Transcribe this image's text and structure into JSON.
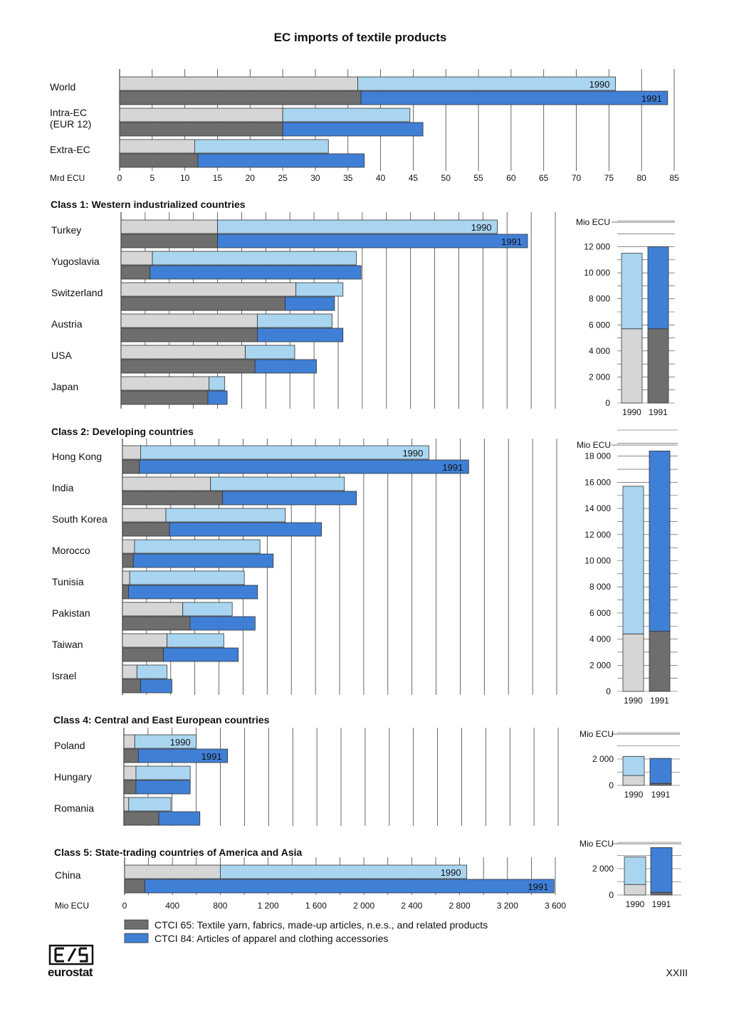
{
  "title": "EC imports of textile products",
  "page_number": "XXIII",
  "logo_text": "eurostat",
  "colors": {
    "ctci65_1990": "#d6d6d6",
    "ctci65_1991": "#6e6e6e",
    "ctci84_1990": "#a9d5f0",
    "ctci84_1991": "#3f7fd6",
    "grid": "#444444"
  },
  "legend": [
    {
      "key": "ctci65",
      "label": "CTCI 65: Textile yarn, fabrics, made-up articles, n.e.s., and related products"
    },
    {
      "key": "ctci84",
      "label": "CTCI 84: Articles of apparel and clothing accessories"
    }
  ],
  "chart_data": [
    {
      "type": "bar",
      "orientation": "horizontal",
      "stacked": true,
      "title": "",
      "unit_label": "Mrd ECU",
      "xlim": [
        0,
        85
      ],
      "ticks": [
        "0",
        "5",
        "10",
        "15",
        "20",
        "25",
        "30",
        "35",
        "40",
        "45",
        "50",
        "55",
        "60",
        "65",
        "70",
        "75",
        "80",
        "85"
      ],
      "year_labels": [
        "1990",
        "1991"
      ],
      "categories": [
        "World",
        "Intra-EC\n(EUR 12)",
        "Extra-EC"
      ],
      "series": [
        {
          "name": "1990",
          "ctci65": [
            36.5,
            25,
            11.5
          ],
          "ctci84": [
            39.5,
            19.5,
            20.5
          ]
        },
        {
          "name": "1991",
          "ctci65": [
            37,
            25,
            12
          ],
          "ctci84": [
            47,
            21.5,
            25.5
          ]
        }
      ]
    },
    {
      "type": "bar",
      "orientation": "horizontal",
      "stacked": true,
      "title": "Class 1: Western industrialized countries",
      "xlim": [
        0,
        3600
      ],
      "year_labels": [
        "1990",
        "1991"
      ],
      "categories": [
        "Turkey",
        "Yugoslavia",
        "Switzerland",
        "Austria",
        "USA",
        "Japan"
      ],
      "series": [
        {
          "name": "1990",
          "ctci65": [
            800,
            260,
            1450,
            1130,
            1030,
            730
          ],
          "ctci84": [
            2320,
            1690,
            390,
            620,
            410,
            130
          ]
        },
        {
          "name": "1991",
          "ctci65": [
            800,
            240,
            1360,
            1130,
            1110,
            720
          ],
          "ctci84": [
            2570,
            1750,
            410,
            710,
            510,
            160
          ]
        }
      ],
      "summary": {
        "unit_label": "Mio ECU",
        "ylim": [
          0,
          14000
        ],
        "ticks": [
          "0",
          "2 000",
          "4 000",
          "6 000",
          "8 000",
          "10 000",
          "12 000"
        ],
        "categories": [
          "1990",
          "1991"
        ],
        "ctci65": [
          5700,
          5700
        ],
        "ctci84": [
          5800,
          6300
        ]
      }
    },
    {
      "type": "bar",
      "orientation": "horizontal",
      "stacked": true,
      "title": "Class 2: Developing countries",
      "xlim": [
        0,
        3600
      ],
      "year_labels": [
        "1990",
        "1991"
      ],
      "categories": [
        "Hong Kong",
        "India",
        "South Korea",
        "Morocco",
        "Tunisia",
        "Pakistan",
        "Taiwan",
        "Israel"
      ],
      "series": [
        {
          "name": "1990",
          "ctci65": [
            150,
            730,
            360,
            100,
            60,
            500,
            370,
            120
          ],
          "ctci84": [
            2390,
            1110,
            990,
            1040,
            950,
            410,
            470,
            250
          ]
        },
        {
          "name": "1991",
          "ctci65": [
            140,
            830,
            390,
            90,
            50,
            560,
            340,
            150
          ],
          "ctci84": [
            2730,
            1110,
            1260,
            1160,
            1070,
            540,
            620,
            260
          ]
        }
      ],
      "summary": {
        "unit_label": "Mio ECU",
        "ylim": [
          0,
          20000
        ],
        "ticks": [
          "0",
          "2 000",
          "4 000",
          "6 000",
          "8 000",
          "10 000",
          "12 000",
          "14 000",
          "16 000",
          "18 000"
        ],
        "categories": [
          "1990",
          "1991"
        ],
        "ctci65": [
          4400,
          4600
        ],
        "ctci84": [
          11300,
          13800
        ]
      }
    },
    {
      "type": "bar",
      "orientation": "horizontal",
      "stacked": true,
      "title": "Class 4: Central and East European countries",
      "xlim": [
        0,
        3600
      ],
      "year_labels": [
        "1990",
        "1991"
      ],
      "categories": [
        "Poland",
        "Hungary",
        "Romania"
      ],
      "series": [
        {
          "name": "1990",
          "ctci65": [
            90,
            100,
            40
          ],
          "ctci84": [
            510,
            450,
            350
          ]
        },
        {
          "name": "1991",
          "ctci65": [
            120,
            100,
            290
          ],
          "ctci84": [
            740,
            450,
            340
          ]
        }
      ],
      "summary": {
        "unit_label": "Mio ECU",
        "ylim": [
          0,
          4000
        ],
        "ticks": [
          "0",
          "2 000"
        ],
        "categories": [
          "1990",
          "1991"
        ],
        "ctci65": [
          750,
          150
        ],
        "ctci84": [
          1450,
          1900
        ]
      }
    },
    {
      "type": "bar",
      "orientation": "horizontal",
      "stacked": true,
      "title": "Class 5: State-trading countries of America and Asia",
      "unit_label": "Mio ECU",
      "xlim": [
        0,
        3600
      ],
      "ticks": [
        "0",
        "400",
        "800",
        "1 200",
        "1 600",
        "2 000",
        "2 400",
        "2 800",
        "3 200",
        "3 600"
      ],
      "year_labels": [
        "1990",
        "1991"
      ],
      "categories": [
        "China"
      ],
      "series": [
        {
          "name": "1990",
          "ctci65": [
            800
          ],
          "ctci84": [
            2060
          ]
        },
        {
          "name": "1991",
          "ctci65": [
            170
          ],
          "ctci84": [
            3420
          ]
        }
      ],
      "summary": {
        "unit_label": "Mio ECU",
        "ylim": [
          0,
          4000
        ],
        "ticks": [
          "0",
          "2 000"
        ],
        "categories": [
          "1990",
          "1991"
        ],
        "ctci65": [
          800,
          200
        ],
        "ctci84": [
          2100,
          3400
        ]
      }
    }
  ]
}
